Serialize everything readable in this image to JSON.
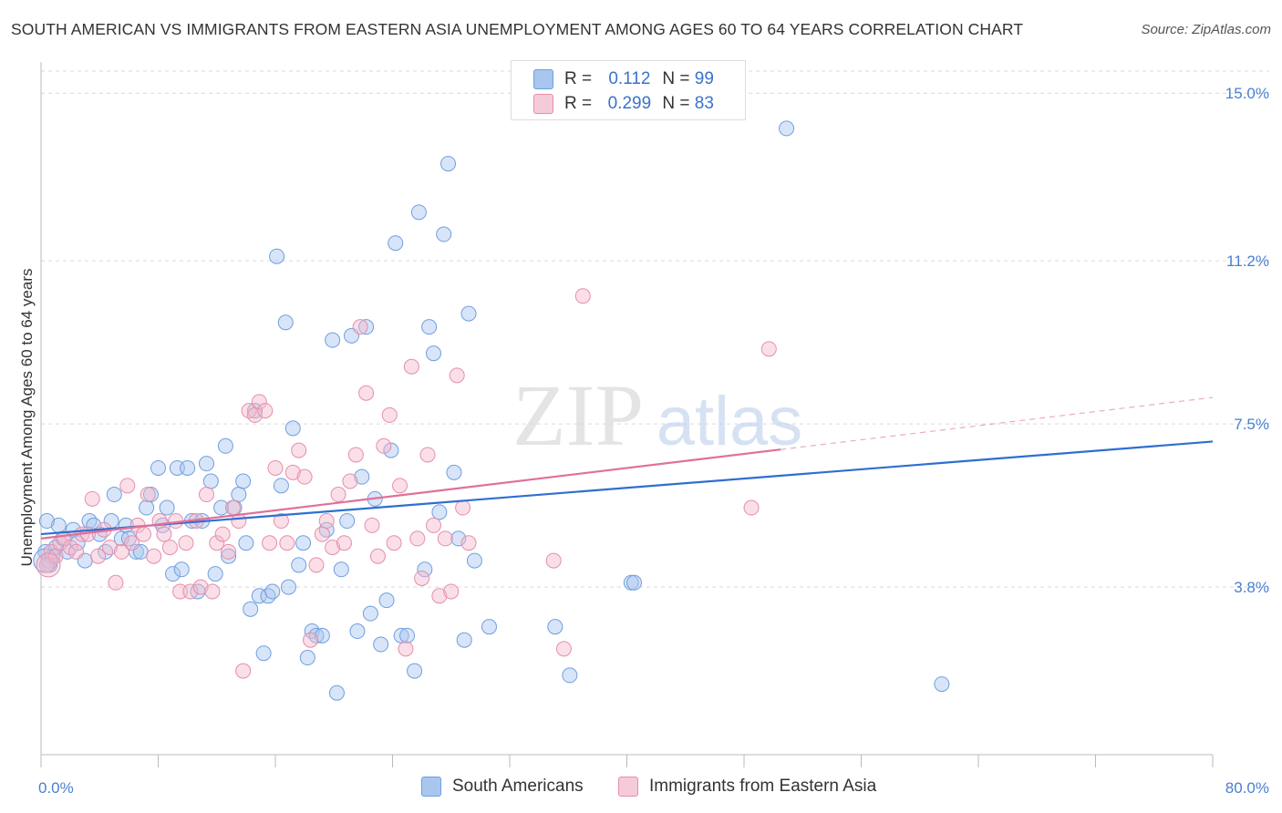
{
  "title": "SOUTH AMERICAN VS IMMIGRANTS FROM EASTERN ASIA UNEMPLOYMENT AMONG AGES 60 TO 64 YEARS CORRELATION CHART",
  "source": "Source: ZipAtlas.com",
  "watermark": {
    "zip": "ZIP",
    "atlas": "atlas"
  },
  "legend": {
    "rows": [
      {
        "r_label": "R =",
        "r_value": "0.112",
        "n_label": "N =",
        "n_value": "99",
        "color": "#a9c6ef"
      },
      {
        "r_label": "R =",
        "r_value": "0.299",
        "n_label": "N =",
        "n_value": "83",
        "color": "#f5b8cb"
      }
    ]
  },
  "bottom_legend": [
    "South Americans",
    "Immigrants from Eastern Asia"
  ],
  "colors": {
    "blue_fill": "#a9c6ef",
    "blue_stroke": "#6e9fe0",
    "blue_line": "#2f6fce",
    "pink_fill": "#f5b8cb",
    "pink_stroke": "#e68eab",
    "pink_line": "#e0709a",
    "axis_text": "#4a7fd0",
    "grid": "#d9d9d9"
  },
  "chart_data": {
    "type": "scatter",
    "title": "SOUTH AMERICAN VS IMMIGRANTS FROM EASTERN ASIA UNEMPLOYMENT AMONG AGES 60 TO 64 YEARS CORRELATION CHART",
    "xlabel": "",
    "ylabel": "Unemployment Among Ages 60 to 64 years",
    "xlim": [
      0,
      80
    ],
    "ylim": [
      0,
      15.5
    ],
    "x_tick_labels": [
      "0.0%",
      "80.0%"
    ],
    "y_ticks": [
      3.8,
      7.5,
      11.2,
      15.0
    ],
    "y_tick_labels": [
      "3.8%",
      "7.5%",
      "11.2%",
      "15.0%"
    ],
    "grid": "horizontal dashed",
    "legend_position": "top-center",
    "series": [
      {
        "name": "South Americans",
        "trend": {
          "x0": 0,
          "y0": 5.0,
          "x1": 80,
          "y1": 7.1,
          "dashed_from": null
        },
        "points": [
          [
            0.3,
            4.6
          ],
          [
            0.5,
            4.4
          ],
          [
            0.6,
            4.3
          ],
          [
            0.8,
            4.5
          ],
          [
            1.0,
            4.7
          ],
          [
            1.2,
            5.2
          ],
          [
            1.5,
            4.9
          ],
          [
            1.8,
            4.6
          ],
          [
            2.2,
            5.1
          ],
          [
            2.5,
            4.8
          ],
          [
            3.0,
            4.4
          ],
          [
            3.3,
            5.3
          ],
          [
            3.6,
            5.2
          ],
          [
            4.0,
            5.0
          ],
          [
            4.4,
            4.6
          ],
          [
            4.8,
            5.3
          ],
          [
            5.0,
            5.9
          ],
          [
            5.5,
            4.9
          ],
          [
            5.8,
            5.2
          ],
          [
            6.0,
            4.9
          ],
          [
            6.5,
            4.6
          ],
          [
            6.8,
            4.6
          ],
          [
            7.2,
            5.6
          ],
          [
            7.5,
            5.9
          ],
          [
            8.0,
            6.5
          ],
          [
            8.3,
            5.2
          ],
          [
            8.6,
            5.6
          ],
          [
            9.0,
            4.1
          ],
          [
            9.3,
            6.5
          ],
          [
            9.6,
            4.2
          ],
          [
            10.0,
            6.5
          ],
          [
            10.3,
            5.3
          ],
          [
            10.7,
            3.7
          ],
          [
            11.0,
            5.3
          ],
          [
            11.3,
            6.6
          ],
          [
            11.6,
            6.2
          ],
          [
            11.9,
            4.1
          ],
          [
            12.3,
            5.6
          ],
          [
            12.6,
            7.0
          ],
          [
            12.8,
            4.5
          ],
          [
            13.2,
            5.6
          ],
          [
            13.5,
            5.9
          ],
          [
            13.8,
            6.2
          ],
          [
            14.0,
            4.8
          ],
          [
            14.3,
            3.3
          ],
          [
            14.6,
            7.8
          ],
          [
            14.9,
            3.6
          ],
          [
            15.2,
            2.3
          ],
          [
            15.5,
            3.6
          ],
          [
            15.8,
            3.7
          ],
          [
            16.1,
            11.3
          ],
          [
            16.4,
            6.1
          ],
          [
            16.7,
            9.8
          ],
          [
            16.9,
            3.8
          ],
          [
            17.2,
            7.4
          ],
          [
            17.6,
            4.3
          ],
          [
            17.9,
            4.8
          ],
          [
            18.2,
            2.2
          ],
          [
            18.5,
            2.8
          ],
          [
            18.8,
            2.7
          ],
          [
            19.2,
            2.7
          ],
          [
            19.5,
            5.1
          ],
          [
            19.9,
            9.4
          ],
          [
            20.2,
            1.4
          ],
          [
            20.5,
            4.2
          ],
          [
            20.9,
            5.3
          ],
          [
            21.2,
            9.5
          ],
          [
            21.6,
            2.8
          ],
          [
            21.9,
            6.3
          ],
          [
            22.2,
            9.7
          ],
          [
            22.5,
            3.2
          ],
          [
            22.8,
            5.8
          ],
          [
            23.2,
            2.5
          ],
          [
            23.6,
            3.5
          ],
          [
            23.9,
            6.9
          ],
          [
            24.2,
            11.6
          ],
          [
            24.6,
            2.7
          ],
          [
            25.0,
            2.7
          ],
          [
            25.5,
            1.9
          ],
          [
            25.8,
            12.3
          ],
          [
            26.2,
            4.2
          ],
          [
            26.5,
            9.7
          ],
          [
            26.8,
            9.1
          ],
          [
            27.2,
            5.5
          ],
          [
            27.5,
            11.8
          ],
          [
            27.8,
            13.4
          ],
          [
            28.2,
            6.4
          ],
          [
            28.5,
            4.9
          ],
          [
            28.9,
            2.6
          ],
          [
            29.2,
            10.0
          ],
          [
            29.6,
            4.4
          ],
          [
            30.6,
            2.9
          ],
          [
            35.1,
            2.9
          ],
          [
            36.1,
            1.8
          ],
          [
            40.3,
            3.9
          ],
          [
            40.5,
            3.9
          ],
          [
            50.9,
            14.2
          ],
          [
            61.5,
            1.6
          ],
          [
            0.4,
            5.3
          ]
        ]
      },
      {
        "name": "Immigrants from Eastern Asia",
        "trend": {
          "x0": 0,
          "y0": 4.9,
          "x1": 80,
          "y1": 8.1,
          "dashed_from": 50.5
        },
        "points": [
          [
            0.4,
            4.3
          ],
          [
            0.7,
            4.6
          ],
          [
            1.0,
            4.5
          ],
          [
            1.3,
            4.8
          ],
          [
            1.6,
            4.9
          ],
          [
            2.0,
            4.7
          ],
          [
            2.4,
            4.6
          ],
          [
            2.8,
            5.0
          ],
          [
            3.2,
            5.0
          ],
          [
            3.5,
            5.8
          ],
          [
            3.9,
            4.5
          ],
          [
            4.3,
            5.1
          ],
          [
            4.7,
            4.7
          ],
          [
            5.1,
            3.9
          ],
          [
            5.5,
            4.6
          ],
          [
            5.9,
            6.1
          ],
          [
            6.2,
            4.8
          ],
          [
            6.6,
            5.2
          ],
          [
            7.0,
            5.0
          ],
          [
            7.3,
            5.9
          ],
          [
            7.7,
            4.5
          ],
          [
            8.1,
            5.3
          ],
          [
            8.4,
            5.0
          ],
          [
            8.8,
            4.7
          ],
          [
            9.2,
            5.3
          ],
          [
            9.5,
            3.7
          ],
          [
            9.9,
            4.8
          ],
          [
            10.2,
            3.7
          ],
          [
            10.6,
            5.3
          ],
          [
            10.9,
            3.8
          ],
          [
            11.3,
            5.9
          ],
          [
            11.7,
            3.7
          ],
          [
            12.0,
            4.8
          ],
          [
            12.4,
            5.0
          ],
          [
            12.8,
            4.6
          ],
          [
            13.1,
            5.6
          ],
          [
            13.5,
            5.3
          ],
          [
            13.8,
            1.9
          ],
          [
            14.2,
            7.8
          ],
          [
            14.6,
            7.7
          ],
          [
            14.9,
            8.0
          ],
          [
            15.3,
            7.8
          ],
          [
            15.6,
            4.8
          ],
          [
            16.0,
            6.5
          ],
          [
            16.4,
            5.3
          ],
          [
            16.8,
            4.8
          ],
          [
            17.2,
            6.4
          ],
          [
            17.6,
            6.9
          ],
          [
            18.0,
            6.3
          ],
          [
            18.4,
            2.6
          ],
          [
            18.8,
            4.3
          ],
          [
            19.2,
            5.0
          ],
          [
            19.5,
            5.3
          ],
          [
            19.9,
            4.7
          ],
          [
            20.3,
            5.9
          ],
          [
            20.7,
            4.8
          ],
          [
            21.1,
            6.2
          ],
          [
            21.5,
            6.8
          ],
          [
            21.8,
            9.7
          ],
          [
            22.2,
            8.2
          ],
          [
            22.6,
            5.2
          ],
          [
            23.0,
            4.5
          ],
          [
            23.4,
            7.0
          ],
          [
            23.8,
            7.7
          ],
          [
            24.1,
            4.8
          ],
          [
            24.5,
            6.1
          ],
          [
            24.9,
            2.4
          ],
          [
            25.3,
            8.8
          ],
          [
            25.7,
            4.9
          ],
          [
            26.0,
            4.0
          ],
          [
            26.4,
            6.8
          ],
          [
            26.8,
            5.2
          ],
          [
            27.2,
            3.6
          ],
          [
            27.6,
            4.9
          ],
          [
            28.0,
            3.7
          ],
          [
            28.4,
            8.6
          ],
          [
            28.8,
            5.6
          ],
          [
            29.2,
            4.8
          ],
          [
            37.0,
            10.4
          ],
          [
            35.0,
            4.4
          ],
          [
            35.7,
            2.4
          ],
          [
            48.5,
            5.6
          ],
          [
            49.7,
            9.2
          ]
        ]
      }
    ]
  }
}
